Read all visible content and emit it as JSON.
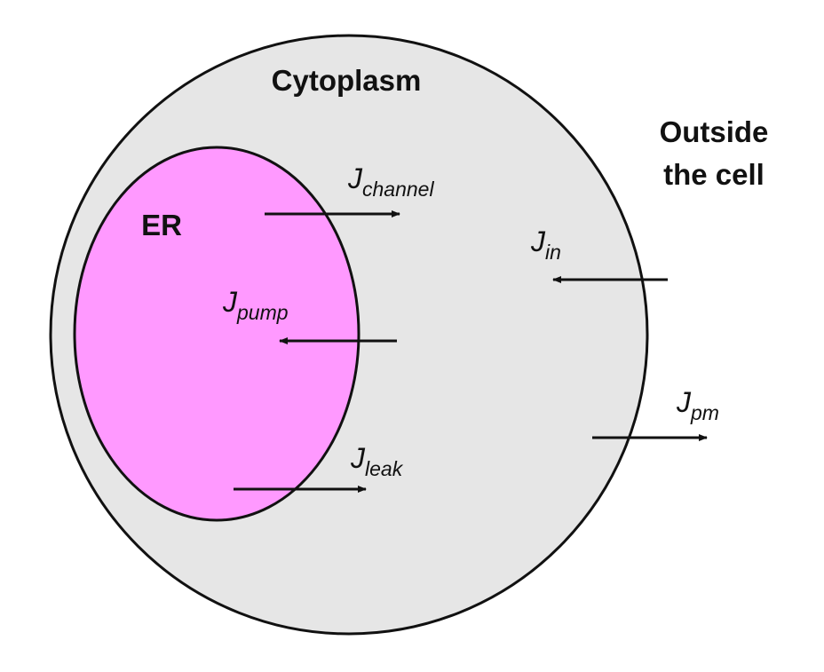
{
  "colors": {
    "cell_fill": "#e6e6e6",
    "er_fill": "#ff99ff",
    "outline": "#111111",
    "arrow": "#111111",
    "background": "#ffffff"
  },
  "regions": {
    "cytoplasm_label": "Cytoplasm",
    "er_label": "ER",
    "outside_label_line1": "Outside",
    "outside_label_line2": "the cell"
  },
  "fluxes": {
    "channel": {
      "symbol": "J",
      "subscript": "channel"
    },
    "pump": {
      "symbol": "J",
      "subscript": "pump"
    },
    "leak": {
      "symbol": "J",
      "subscript": "leak"
    },
    "in": {
      "symbol": "J",
      "subscript": "in"
    },
    "pm": {
      "symbol": "J",
      "subscript": "pm"
    }
  }
}
